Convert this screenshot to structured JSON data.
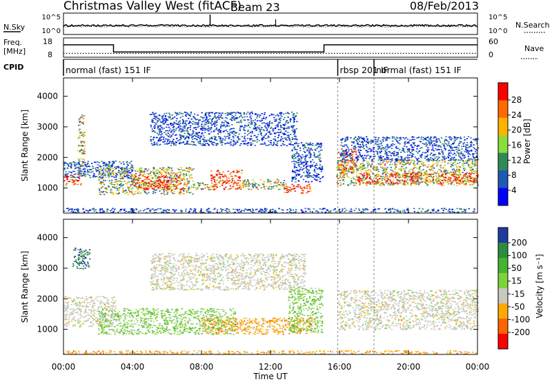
{
  "header": {
    "station": "Christmas Valley West (fitACF)",
    "beam": "Beam 23",
    "date": "08/Feb/2013"
  },
  "top_panels": {
    "nsky_label": "N.Sky",
    "nsearch_label": "N.Search",
    "noise_ticks": [
      "10^5",
      "10^0"
    ],
    "freq_label": "Freq.",
    "freq_unit": "[MHz]",
    "freq_ticks": [
      "18",
      "8"
    ],
    "nave_label": "Nave",
    "nave_ticks": [
      "60",
      "0"
    ],
    "cpid_label": "CPID",
    "cpid_segments": [
      {
        "label": "normal (fast) 151 IF",
        "start_hour": 0,
        "end_hour": 15.9
      },
      {
        "label": "rbsp 201 IF",
        "start_hour": 15.9,
        "end_hour": 18.0
      },
      {
        "label": "normal (fast) 151 IF",
        "start_hour": 18.0,
        "end_hour": 24
      }
    ],
    "freq_steps": [
      {
        "start_hour": 0,
        "end_hour": 2.9,
        "mhz": 15.5
      },
      {
        "start_hour": 2.9,
        "end_hour": 15.1,
        "mhz": 11.2
      },
      {
        "start_hour": 15.1,
        "end_hour": 24,
        "mhz": 15.5
      }
    ],
    "nave_level": 12
  },
  "axes": {
    "y_label": "Slant Range [km]",
    "y_ticks": [
      1000,
      2000,
      3000,
      4000
    ],
    "ylim": [
      180,
      4600
    ],
    "x_label": "Time UT",
    "x_ticks": [
      "00:00",
      "04:00",
      "08:00",
      "12:00",
      "16:00",
      "20:00",
      "00:00"
    ],
    "xlim_hours": [
      0,
      24
    ]
  },
  "power_colorbar": {
    "label": "Power [dB]",
    "ticks": [
      "28",
      "24",
      "20",
      "16",
      "12",
      "8",
      "4"
    ],
    "colors": [
      "#ff0000",
      "#ff6a00",
      "#ffb400",
      "#8cdc3c",
      "#2e8b57",
      "#1e5ab4",
      "#0000ff"
    ]
  },
  "velocity_colorbar": {
    "label": "Velocity [m s⁻¹]",
    "ticks": [
      "200",
      "100",
      "50",
      "15",
      "-15",
      "-50",
      "-100",
      "-200"
    ],
    "colors": [
      "#1e3ca0",
      "#2d8c3c",
      "#46b432",
      "#7ed23c",
      "#c8c8c0",
      "#ffaa00",
      "#ff6400",
      "#ff0000"
    ]
  },
  "chart_data": [
    {
      "type": "heatmap",
      "name": "Power",
      "x_unit": "hours UT",
      "y_unit": "km",
      "regions": [
        {
          "t0": 0.0,
          "t1": 1.0,
          "r0": 1100,
          "r1": 1500,
          "level": "strong"
        },
        {
          "t0": 0.8,
          "t1": 1.2,
          "r0": 1400,
          "r1": 3400,
          "level": "medium"
        },
        {
          "t0": 0.0,
          "t1": 4.0,
          "r0": 1350,
          "r1": 1900,
          "level": "weak"
        },
        {
          "t0": 2.0,
          "t1": 7.5,
          "r0": 800,
          "r1": 1700,
          "level": "medium"
        },
        {
          "t0": 4.0,
          "t1": 7.0,
          "r0": 950,
          "r1": 1450,
          "level": "strong"
        },
        {
          "t0": 7.5,
          "t1": 8.5,
          "r0": 950,
          "r1": 1200,
          "level": "medium"
        },
        {
          "t0": 8.5,
          "t1": 10.3,
          "r0": 950,
          "r1": 1600,
          "level": "strong"
        },
        {
          "t0": 10.3,
          "t1": 12.8,
          "r0": 950,
          "r1": 1300,
          "level": "medium"
        },
        {
          "t0": 12.8,
          "t1": 14.3,
          "r0": 850,
          "r1": 1150,
          "level": "strong"
        },
        {
          "t0": 5.0,
          "t1": 13.5,
          "r0": 2400,
          "r1": 3500,
          "level": "weak"
        },
        {
          "t0": 13.2,
          "t1": 15.0,
          "r0": 1200,
          "r1": 2500,
          "level": "weak"
        },
        {
          "t0": 15.9,
          "t1": 17.0,
          "r0": 1500,
          "r1": 2300,
          "level": "strong"
        },
        {
          "t0": 15.8,
          "t1": 24.0,
          "r0": 1100,
          "r1": 1950,
          "level": "medium"
        },
        {
          "t0": 17.0,
          "t1": 24.0,
          "r0": 1150,
          "r1": 1500,
          "level": "strong"
        },
        {
          "t0": 16.0,
          "t1": 24.0,
          "r0": 1900,
          "r1": 2700,
          "level": "weak"
        },
        {
          "t0": 0.0,
          "t1": 24.0,
          "r0": 200,
          "r1": 350,
          "level": "weak"
        }
      ]
    },
    {
      "type": "heatmap",
      "name": "Velocity",
      "x_unit": "hours UT",
      "y_unit": "km",
      "regions": [
        {
          "t0": 0.0,
          "t1": 3.0,
          "r0": 1100,
          "r1": 2100,
          "level": "near-zero"
        },
        {
          "t0": 0.5,
          "t1": 1.5,
          "r0": 3000,
          "r1": 3700,
          "level": "positive"
        },
        {
          "t0": 2.0,
          "t1": 10.0,
          "r0": 850,
          "r1": 1700,
          "level": "moderate-positive"
        },
        {
          "t0": 8.0,
          "t1": 14.5,
          "r0": 850,
          "r1": 1400,
          "level": "negative"
        },
        {
          "t0": 5.0,
          "t1": 14.0,
          "r0": 2300,
          "r1": 3500,
          "level": "near-zero"
        },
        {
          "t0": 13.0,
          "t1": 15.0,
          "r0": 900,
          "r1": 2400,
          "level": "moderate-positive"
        },
        {
          "t0": 15.9,
          "t1": 24.0,
          "r0": 1000,
          "r1": 2300,
          "level": "near-zero"
        },
        {
          "t0": 0.0,
          "t1": 24.0,
          "r0": 200,
          "r1": 320,
          "level": "negative"
        }
      ]
    }
  ]
}
